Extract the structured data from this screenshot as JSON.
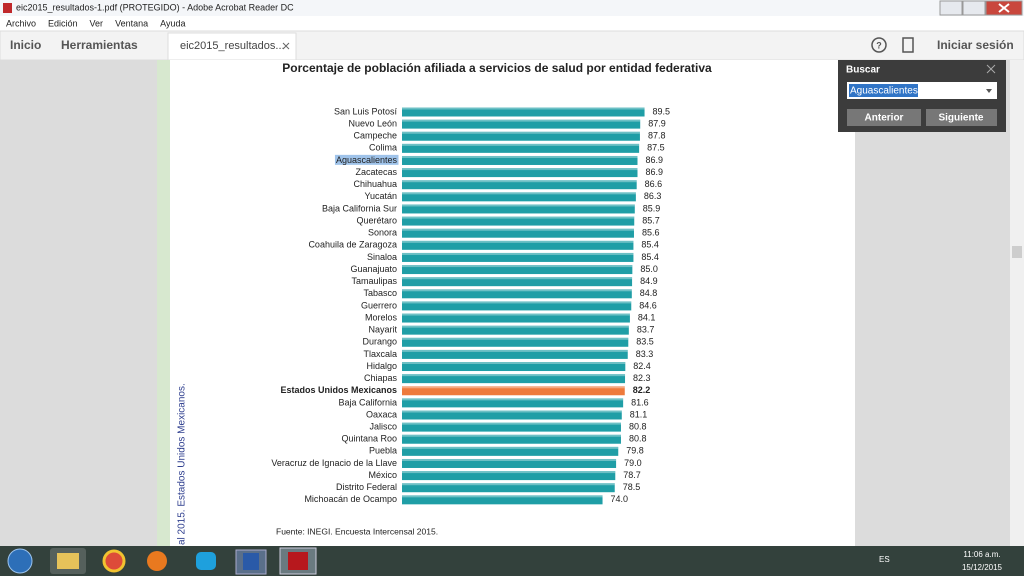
{
  "window": {
    "title": "eic2015_resultados-1.pdf (PROTEGIDO) - Adobe Acrobat Reader DC",
    "menu": [
      "Archivo",
      "Edición",
      "Ver",
      "Ventana",
      "Ayuda"
    ],
    "toolbar": [
      "Inicio",
      "Herramientas"
    ],
    "tab": "eic2015_resultados...",
    "sign_in": "Iniciar sesión"
  },
  "find": {
    "title": "Buscar",
    "query": "Aguascalientes",
    "buttons": [
      "Anterior",
      "Siguiente"
    ]
  },
  "side_text": "al 2015. Estados Unidos Mexicanos.",
  "taskbar": {
    "language": "ES",
    "time": "11:06 a.m.",
    "date": "15/12/2015"
  },
  "chart_data": {
    "type": "bar",
    "orientation": "horizontal",
    "title": "Porcentaje de población afiliada a servicios de salud por entidad federativa",
    "categories": [
      "San Luis Potosí",
      "Nuevo León",
      "Campeche",
      "Colima",
      "Aguascalientes",
      "Zacatecas",
      "Chihuahua",
      "Yucatán",
      "Baja California Sur",
      "Querétaro",
      "Sonora",
      "Coahuila de Zaragoza",
      "Sinaloa",
      "Guanajuato",
      "Tamaulipas",
      "Tabasco",
      "Guerrero",
      "Morelos",
      "Nayarit",
      "Durango",
      "Tlaxcala",
      "Hidalgo",
      "Chiapas",
      "Estados Unidos Mexicanos",
      "Baja California",
      "Oaxaca",
      "Jalisco",
      "Quintana Roo",
      "Puebla",
      "Veracruz de Ignacio de la Llave",
      "México",
      "Distrito Federal",
      "Michoacán de Ocampo"
    ],
    "values": [
      89.5,
      87.9,
      87.8,
      87.5,
      86.9,
      86.9,
      86.6,
      86.3,
      85.9,
      85.7,
      85.6,
      85.4,
      85.4,
      85.0,
      84.9,
      84.8,
      84.6,
      84.1,
      83.7,
      83.5,
      83.3,
      82.4,
      82.3,
      82.2,
      81.6,
      81.1,
      80.8,
      80.8,
      79.8,
      79.0,
      78.7,
      78.5,
      74.0
    ],
    "value_labels": [
      "89.5",
      "87.9",
      "87.8",
      "87.5",
      "86.9",
      "86.9",
      "86.6",
      "86.3",
      "85.9",
      "85.7",
      "85.6",
      "85.4",
      "85.4",
      "85.0",
      "84.9",
      "84.8",
      "84.6",
      "84.1",
      "83.7",
      "83.5",
      "83.3",
      "82.4",
      "82.3",
      "82.2",
      "81.6",
      "81.1",
      "80.8",
      "80.8",
      "79.8",
      "79.0",
      "78.7",
      "78.5",
      "74.0"
    ],
    "colors": [
      "#1f9ea6",
      "#1f9ea6",
      "#1f9ea6",
      "#1f9ea6",
      "#1f9ea6",
      "#1f9ea6",
      "#1f9ea6",
      "#1f9ea6",
      "#1f9ea6",
      "#1f9ea6",
      "#1f9ea6",
      "#1f9ea6",
      "#1f9ea6",
      "#1f9ea6",
      "#1f9ea6",
      "#1f9ea6",
      "#1f9ea6",
      "#1f9ea6",
      "#1f9ea6",
      "#1f9ea6",
      "#1f9ea6",
      "#1f9ea6",
      "#1f9ea6",
      "#ee7a3c",
      "#1f9ea6",
      "#1f9ea6",
      "#1f9ea6",
      "#1f9ea6",
      "#1f9ea6",
      "#1f9ea6",
      "#1f9ea6",
      "#1f9ea6",
      "#1f9ea6"
    ],
    "xlim": [
      0,
      100
    ],
    "source": "Fuente: INEGI. Encuesta Intercensal 2015."
  }
}
